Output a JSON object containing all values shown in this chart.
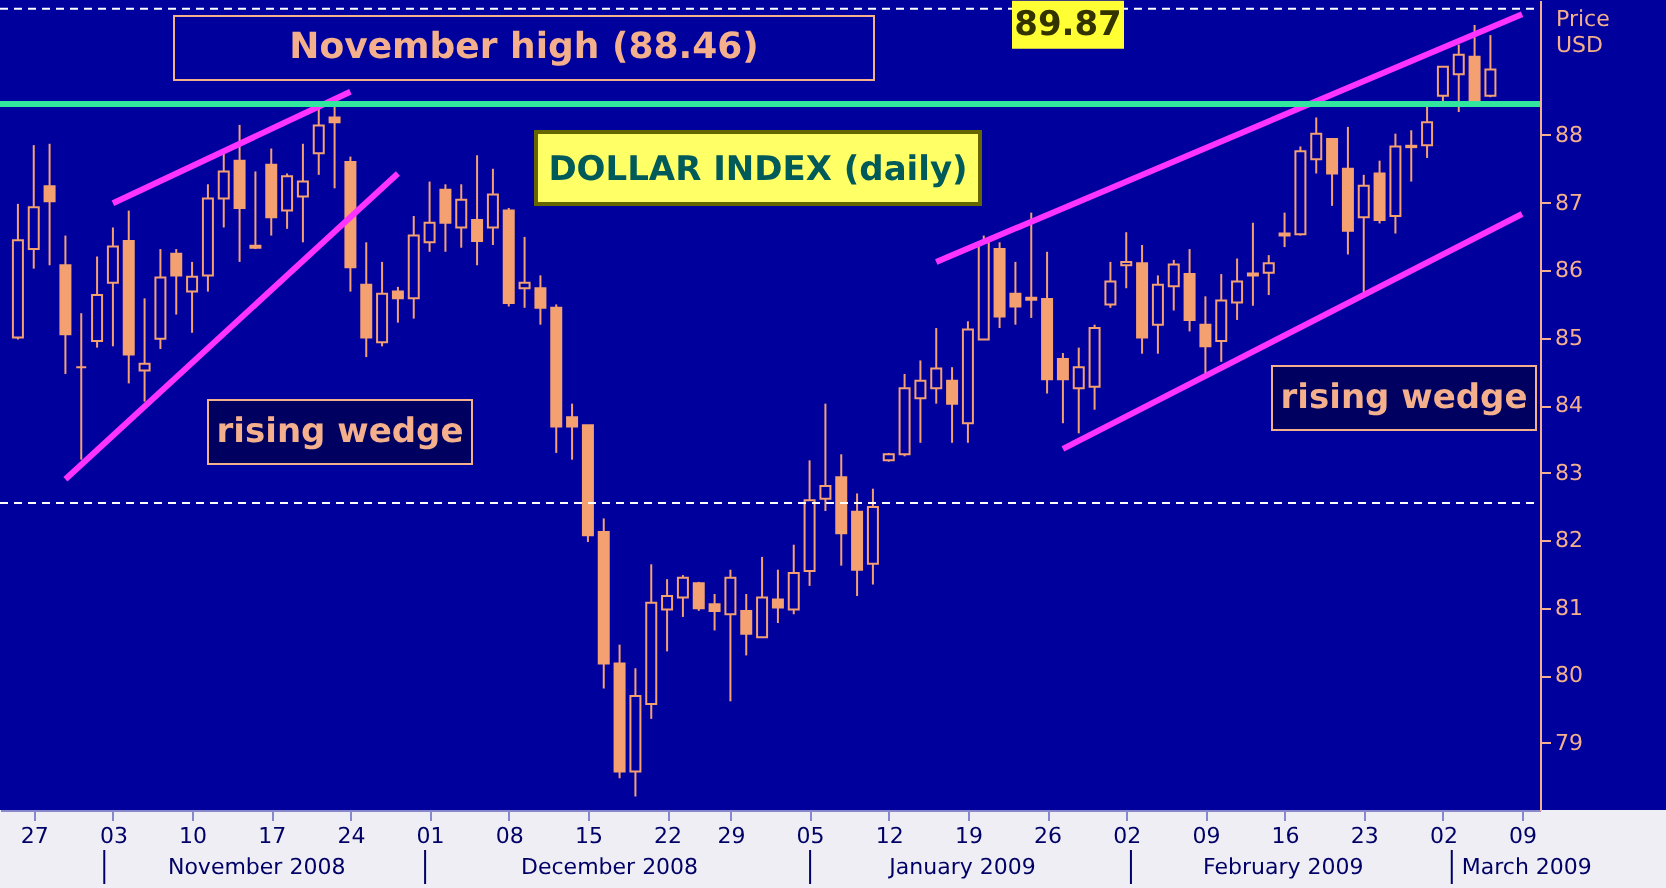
{
  "chart_data": {
    "type": "candlestick",
    "title": "DOLLAR INDEX (daily)",
    "ylabel": "Price USD",
    "color": "#f4a070",
    "categories": [
      null,
      "27",
      null,
      null,
      null,
      null,
      "03",
      null,
      null,
      null,
      null,
      "10",
      null,
      null,
      null,
      null,
      "17",
      null,
      null,
      null,
      null,
      "24",
      null,
      null,
      null,
      null,
      "01",
      null,
      null,
      null,
      null,
      "08",
      null,
      null,
      null,
      null,
      "15",
      null,
      null,
      null,
      null,
      "22",
      null,
      null,
      null,
      "29",
      null,
      null,
      null,
      null,
      "05",
      null,
      null,
      null,
      null,
      "12",
      null,
      null,
      null,
      null,
      "19",
      null,
      null,
      null,
      null,
      "26",
      null,
      null,
      null,
      null,
      "02",
      null,
      null,
      null,
      null,
      "09",
      null,
      null,
      null,
      null,
      "16",
      null,
      null,
      null,
      null,
      "23",
      null,
      null,
      null,
      null,
      "02",
      null,
      null,
      null,
      null,
      "09"
    ],
    "ohlc": [
      [
        85.0,
        86.98,
        84.97,
        86.44
      ],
      [
        86.31,
        87.85,
        86.02,
        86.93
      ],
      [
        87.24,
        87.87,
        86.07,
        87.02
      ],
      [
        86.07,
        86.51,
        84.46,
        85.05
      ],
      [
        84.56,
        85.36,
        83.19,
        84.56
      ],
      [
        84.95,
        86.2,
        84.85,
        85.63
      ],
      [
        85.81,
        86.63,
        84.87,
        86.35
      ],
      [
        86.43,
        86.88,
        84.32,
        84.75
      ],
      [
        84.51,
        85.58,
        84.05,
        84.61
      ],
      [
        84.98,
        86.31,
        84.83,
        85.89
      ],
      [
        86.24,
        86.31,
        85.34,
        85.92
      ],
      [
        85.68,
        86.12,
        85.07,
        85.9
      ],
      [
        85.92,
        87.27,
        85.68,
        87.06
      ],
      [
        87.06,
        87.73,
        86.63,
        87.46
      ],
      [
        87.62,
        88.15,
        86.12,
        86.92
      ],
      [
        86.36,
        87.46,
        86.31,
        86.33
      ],
      [
        87.56,
        87.8,
        86.51,
        86.78
      ],
      [
        86.88,
        87.43,
        86.61,
        87.39
      ],
      [
        87.09,
        87.87,
        86.41,
        87.31
      ],
      [
        87.73,
        88.4,
        87.41,
        88.14
      ],
      [
        88.26,
        88.46,
        87.21,
        88.19
      ],
      [
        87.6,
        87.68,
        85.68,
        86.04
      ],
      [
        85.78,
        86.41,
        84.71,
        85.0
      ],
      [
        84.93,
        86.12,
        84.87,
        85.65
      ],
      [
        85.68,
        85.75,
        85.22,
        85.58
      ],
      [
        85.58,
        86.8,
        85.28,
        86.51
      ],
      [
        86.41,
        87.31,
        86.27,
        86.7
      ],
      [
        87.19,
        87.27,
        86.27,
        86.7
      ],
      [
        86.63,
        87.27,
        86.33,
        87.04
      ],
      [
        86.74,
        87.7,
        86.07,
        86.43
      ],
      [
        86.63,
        87.5,
        86.37,
        87.12
      ],
      [
        86.88,
        86.92,
        85.46,
        85.51
      ],
      [
        85.73,
        86.49,
        85.44,
        85.81
      ],
      [
        85.73,
        85.92,
        85.19,
        85.44
      ],
      [
        85.44,
        85.49,
        83.29,
        83.68
      ],
      [
        83.82,
        84.02,
        83.19,
        83.68
      ],
      [
        83.7,
        83.7,
        81.97,
        82.07
      ],
      [
        82.12,
        82.32,
        79.8,
        80.17
      ],
      [
        80.17,
        80.45,
        78.47,
        78.57
      ],
      [
        78.57,
        80.1,
        78.2,
        79.69
      ],
      [
        79.57,
        81.64,
        79.35,
        81.07
      ],
      [
        80.97,
        81.42,
        80.35,
        81.17
      ],
      [
        81.15,
        81.48,
        80.86,
        81.44
      ],
      [
        81.36,
        81.38,
        80.95,
        80.99
      ],
      [
        81.05,
        81.2,
        80.66,
        80.95
      ],
      [
        80.9,
        81.56,
        79.61,
        81.44
      ],
      [
        80.95,
        81.2,
        80.29,
        80.61
      ],
      [
        80.56,
        81.75,
        80.56,
        81.15
      ],
      [
        81.12,
        81.56,
        80.77,
        81.0
      ],
      [
        80.97,
        81.93,
        80.9,
        81.51
      ],
      [
        81.54,
        83.18,
        81.32,
        82.59
      ],
      [
        82.61,
        84.02,
        82.43,
        82.8
      ],
      [
        82.93,
        83.27,
        81.62,
        82.1
      ],
      [
        82.42,
        82.69,
        81.17,
        81.56
      ],
      [
        81.65,
        82.76,
        81.34,
        82.49
      ],
      [
        83.18,
        83.29,
        83.16,
        83.27
      ],
      [
        83.27,
        84.46,
        83.24,
        84.25
      ],
      [
        84.1,
        84.66,
        83.44,
        84.36
      ],
      [
        84.25,
        85.14,
        84.02,
        84.54
      ],
      [
        84.36,
        84.56,
        83.44,
        84.02
      ],
      [
        83.73,
        85.24,
        83.44,
        85.12
      ],
      [
        84.97,
        86.51,
        84.97,
        86.41
      ],
      [
        86.31,
        86.41,
        85.14,
        85.31
      ],
      [
        85.65,
        86.12,
        85.19,
        85.46
      ],
      [
        85.59,
        86.85,
        85.29,
        85.56
      ],
      [
        85.57,
        86.27,
        84.17,
        84.38
      ],
      [
        84.68,
        84.77,
        83.73,
        84.38
      ],
      [
        84.25,
        84.85,
        83.58,
        84.56
      ],
      [
        84.27,
        85.19,
        83.93,
        85.14
      ],
      [
        85.49,
        86.12,
        85.44,
        85.83
      ],
      [
        86.07,
        86.56,
        85.73,
        86.12
      ],
      [
        86.1,
        86.37,
        84.76,
        85.0
      ],
      [
        85.19,
        85.92,
        84.76,
        85.78
      ],
      [
        85.76,
        86.15,
        85.4,
        86.08
      ],
      [
        85.94,
        86.31,
        85.09,
        85.26
      ],
      [
        85.19,
        85.61,
        84.47,
        84.87
      ],
      [
        84.95,
        85.94,
        84.64,
        85.55
      ],
      [
        85.52,
        86.17,
        85.26,
        85.83
      ],
      [
        85.95,
        86.7,
        85.47,
        85.92
      ],
      [
        85.96,
        86.22,
        85.63,
        86.1
      ],
      [
        86.54,
        86.85,
        86.34,
        86.51
      ],
      [
        86.53,
        87.83,
        86.51,
        87.76
      ],
      [
        87.64,
        88.26,
        87.43,
        88.02
      ],
      [
        87.94,
        87.94,
        86.95,
        87.43
      ],
      [
        87.5,
        88.12,
        86.23,
        86.58
      ],
      [
        86.78,
        87.41,
        85.66,
        87.25
      ],
      [
        87.43,
        87.62,
        86.69,
        86.74
      ],
      [
        86.8,
        88.02,
        86.54,
        87.83
      ],
      [
        87.84,
        88.07,
        87.31,
        87.82
      ],
      [
        87.85,
        88.46,
        87.66,
        88.19
      ],
      [
        88.58,
        89.01,
        88.48,
        89.01
      ],
      [
        88.9,
        89.34,
        88.34,
        89.19
      ],
      [
        89.16,
        89.63,
        88.44,
        88.46
      ],
      [
        88.58,
        89.48,
        88.56,
        88.97
      ],
      null,
      null
    ],
    "series": [
      {
        "type": "line",
        "color": "#ff33ff",
        "values": [
          null,
          null,
          null,
          null,
          null,
          null,
          86.99,
          null,
          null,
          null,
          null,
          null,
          null,
          null,
          null,
          null,
          null,
          null,
          null,
          null,
          null,
          88.64,
          null,
          null,
          null,
          null,
          null,
          null,
          null,
          null,
          null,
          null,
          null,
          null,
          null,
          null,
          null,
          null,
          null,
          null,
          null,
          null,
          null,
          null,
          null,
          null,
          null,
          null,
          null,
          null,
          null,
          null,
          null,
          null,
          null,
          null,
          null,
          null,
          null,
          null,
          null,
          null,
          null,
          null,
          null,
          null,
          null,
          null,
          null,
          null,
          null,
          null,
          null,
          null,
          null,
          null,
          null,
          null,
          null,
          null,
          null,
          null,
          null,
          null,
          null,
          null,
          null,
          null,
          null,
          null,
          null,
          null,
          null,
          null,
          null,
          null
        ]
      },
      {
        "type": "line",
        "color": "#ff33ff",
        "values": [
          null,
          null,
          null,
          82.9,
          null,
          null,
          null,
          null,
          null,
          null,
          null,
          null,
          null,
          null,
          null,
          null,
          null,
          null,
          null,
          null,
          null,
          null,
          null,
          null,
          87.43,
          null,
          null,
          null,
          null,
          null,
          null,
          null,
          null,
          null,
          null,
          null,
          null,
          null,
          null,
          null,
          null,
          null,
          null,
          null,
          null,
          null,
          null,
          null,
          null,
          null,
          null,
          null,
          null,
          null,
          null,
          null,
          null,
          null,
          null,
          null,
          null,
          null,
          null,
          null,
          null,
          null,
          null,
          null,
          null,
          null,
          null,
          null,
          null,
          null,
          null,
          null,
          null,
          null,
          null,
          null,
          null,
          null,
          null,
          null,
          null,
          null,
          null,
          null,
          null,
          null,
          null,
          null,
          null,
          null,
          null,
          null
        ]
      },
      {
        "type": "line",
        "color": "#ff33ff",
        "values": [
          null,
          null,
          null,
          null,
          null,
          null,
          null,
          null,
          null,
          null,
          null,
          null,
          null,
          null,
          null,
          null,
          null,
          null,
          null,
          null,
          null,
          null,
          null,
          null,
          null,
          null,
          null,
          null,
          null,
          null,
          null,
          null,
          null,
          null,
          null,
          null,
          null,
          null,
          null,
          null,
          null,
          null,
          null,
          null,
          null,
          null,
          null,
          null,
          null,
          null,
          null,
          null,
          null,
          null,
          null,
          null,
          null,
          null,
          86.12,
          null,
          null,
          null,
          null,
          null,
          null,
          null,
          null,
          null,
          null,
          null,
          null,
          null,
          null,
          null,
          null,
          null,
          null,
          null,
          null,
          null,
          null,
          null,
          null,
          null,
          null,
          null,
          null,
          null,
          null,
          null,
          null,
          null,
          null,
          null,
          null,
          89.79
        ]
      },
      {
        "type": "line",
        "color": "#ff33ff",
        "values": [
          null,
          null,
          null,
          null,
          null,
          null,
          null,
          null,
          null,
          null,
          null,
          null,
          null,
          null,
          null,
          null,
          null,
          null,
          null,
          null,
          null,
          null,
          null,
          null,
          null,
          null,
          null,
          null,
          null,
          null,
          null,
          null,
          null,
          null,
          null,
          null,
          null,
          null,
          null,
          null,
          null,
          null,
          null,
          null,
          null,
          null,
          null,
          null,
          null,
          null,
          null,
          null,
          null,
          null,
          null,
          null,
          null,
          null,
          null,
          null,
          null,
          null,
          null,
          null,
          null,
          null,
          83.35,
          null,
          null,
          null,
          null,
          null,
          null,
          null,
          null,
          null,
          null,
          null,
          null,
          null,
          null,
          null,
          null,
          null,
          null,
          null,
          null,
          null,
          null,
          null,
          null,
          null,
          null,
          null,
          null,
          86.83
        ]
      }
    ],
    "ylim": [
      78.0,
      90.0
    ],
    "yticks": [
      79,
      80,
      81,
      82,
      83,
      84,
      85,
      86,
      87,
      88
    ],
    "ref_lines": [
      {
        "axis": "y",
        "value": 88.46,
        "label": "November high (88.46)",
        "color": "#33e6a0",
        "line_style": "solid"
      },
      {
        "axis": "y",
        "value": 89.87,
        "label": "89.87",
        "color": "#ffffff",
        "line_style": "dashed"
      },
      {
        "axis": "y",
        "value": 82.55,
        "color": "#ffffff",
        "line_style": "dashed"
      }
    ],
    "annotations": [
      "November 2008",
      "December 2008",
      "January 2009",
      "February 2009",
      "March 2009",
      "rising wedge",
      "rising wedge"
    ]
  }
}
